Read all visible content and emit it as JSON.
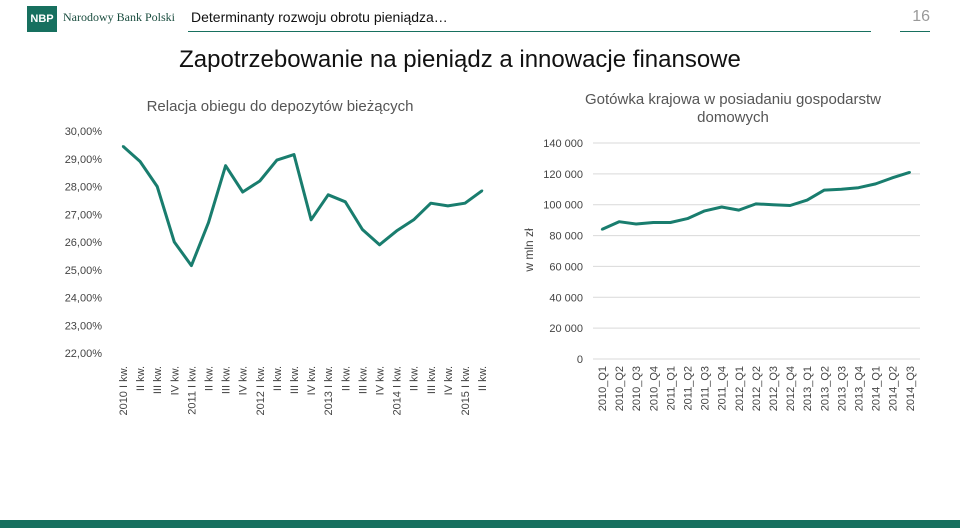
{
  "header": {
    "logo_text": "NBP",
    "bank_name": "Narodowy Bank Polski",
    "title": "Determinanty rozwoju obrotu pieniądza…",
    "page_number": "16"
  },
  "main_title": "Zapotrzebowanie na pieniądz a innowacje finansowe",
  "colors": {
    "line": "#197d6e",
    "brand": "#17705f"
  },
  "chart_data": [
    {
      "type": "line",
      "title": "Relacja obiegu do depozytów bieżących",
      "xlabel": "",
      "ylabel": "",
      "ylim": [
        22,
        30
      ],
      "yticks": [
        30,
        29,
        28,
        27,
        26,
        25,
        24,
        23,
        22
      ],
      "ytick_labels": [
        "30,00%",
        "29,00%",
        "28,00%",
        "27,00%",
        "26,00%",
        "25,00%",
        "24,00%",
        "23,00%",
        "22,00%"
      ],
      "grid": false,
      "categories": [
        "2010 I kw.",
        "II kw.",
        "III kw.",
        "IV kw.",
        "2011 I kw.",
        "II kw.",
        "III kw.",
        "IV kw.",
        "2012 I kw.",
        "II kw.",
        "III kw.",
        "IV kw.",
        "2013 I kw.",
        "II kw.",
        "III kw.",
        "IV kw.",
        "2014 I kw.",
        "II kw.",
        "III kw.",
        "IV kw.",
        "2015 I kw.",
        "II kw."
      ],
      "values": [
        29.45,
        28.9,
        28.0,
        26.0,
        25.15,
        26.7,
        28.75,
        27.8,
        28.2,
        28.95,
        29.15,
        26.8,
        27.7,
        27.45,
        26.45,
        25.9,
        26.4,
        26.8,
        27.4,
        27.3,
        27.4,
        27.85
      ]
    },
    {
      "type": "line",
      "title": "Gotówka krajowa w posiadaniu gospodarstw domowych",
      "xlabel": "",
      "ylabel": "w mln zł",
      "ylim": [
        0,
        140000
      ],
      "yticks": [
        140000,
        120000,
        100000,
        80000,
        60000,
        40000,
        20000,
        0
      ],
      "ytick_labels": [
        "140 000",
        "120 000",
        "100 000",
        "80 000",
        "60 000",
        "40 000",
        "20 000",
        "0"
      ],
      "grid": true,
      "categories": [
        "2010_Q1",
        "2010_Q2",
        "2010_Q3",
        "2010_Q4",
        "2011_Q1",
        "2011_Q2",
        "2011_Q3",
        "2011_Q4",
        "2012_Q1",
        "2012_Q2",
        "2012_Q3",
        "2012_Q4",
        "2013_Q1",
        "2013_Q2",
        "2013_Q3",
        "2013_Q4",
        "2014_Q1",
        "2014_Q2",
        "2014_Q3"
      ],
      "values": [
        84000,
        89000,
        87500,
        88500,
        88500,
        91000,
        96000,
        98500,
        96500,
        100500,
        100000,
        99500,
        103000,
        109500,
        110000,
        111000,
        113500,
        117500,
        121000
      ]
    }
  ]
}
